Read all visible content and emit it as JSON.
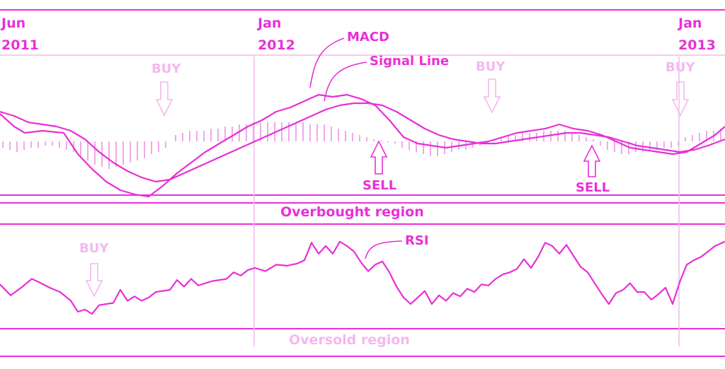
{
  "colors": {
    "primary": "#e830d8",
    "light": "#f4b8ee",
    "histogram": "#f0a8ea"
  },
  "dates": [
    {
      "month": "Jun",
      "year": "2011"
    },
    {
      "month": "Jan",
      "year": "2012"
    },
    {
      "month": "Jan",
      "year": "2013"
    }
  ],
  "annotations": {
    "macd": "MACD",
    "signal_line": "Signal Line",
    "rsi": "RSI",
    "overbought": "Overbought region",
    "oversold": "Oversold region"
  },
  "signals": {
    "macd_panel": [
      {
        "label": "BUY",
        "direction": "down",
        "emphasis": "faint"
      },
      {
        "label": "BUY",
        "direction": "down",
        "emphasis": "faint"
      },
      {
        "label": "BUY",
        "direction": "down",
        "emphasis": "faint"
      },
      {
        "label": "SELL",
        "direction": "up",
        "emphasis": "strong"
      },
      {
        "label": "SELL",
        "direction": "up",
        "emphasis": "strong"
      }
    ],
    "rsi_panel": [
      {
        "label": "BUY",
        "direction": "down",
        "emphasis": "faint"
      }
    ]
  },
  "chart_data": [
    {
      "type": "line",
      "panel": "MACD",
      "series": [
        {
          "name": "MACD",
          "role": "macd",
          "x": [
            0,
            20,
            35,
            60,
            90,
            110,
            130,
            150,
            170,
            190,
            210,
            230,
            250,
            270,
            290,
            310,
            330,
            350,
            370,
            390,
            410,
            430,
            450,
            470,
            490,
            510,
            530,
            550,
            570,
            590,
            610,
            630,
            650,
            670,
            690,
            710,
            730,
            750,
            770,
            790,
            810,
            830,
            850,
            870,
            890,
            910,
            930,
            950,
            970,
            990,
            1010,
            1024
          ],
          "y": [
            1.3,
            0.7,
            0.4,
            0.5,
            0.4,
            -0.6,
            -1.3,
            -1.9,
            -2.3,
            -2.5,
            -2.6,
            -2.1,
            -1.5,
            -1.0,
            -0.5,
            -0.1,
            0.3,
            0.7,
            1.0,
            1.4,
            1.6,
            1.9,
            2.2,
            2.1,
            2.2,
            2.0,
            1.7,
            1.0,
            0.2,
            -0.1,
            -0.2,
            -0.3,
            -0.2,
            -0.1,
            0.0,
            0.2,
            0.4,
            0.5,
            0.6,
            0.8,
            0.6,
            0.5,
            0.3,
            0.0,
            -0.3,
            -0.4,
            -0.5,
            -0.6,
            -0.5,
            -0.1,
            0.3,
            0.7
          ]
        },
        {
          "name": "Signal Line",
          "role": "signal",
          "x": [
            0,
            20,
            40,
            60,
            80,
            100,
            120,
            140,
            160,
            180,
            200,
            220,
            240,
            260,
            280,
            300,
            320,
            340,
            360,
            380,
            400,
            420,
            440,
            460,
            480,
            500,
            520,
            540,
            560,
            580,
            600,
            620,
            640,
            660,
            680,
            700,
            720,
            740,
            760,
            780,
            800,
            820,
            840,
            860,
            880,
            900,
            920,
            940,
            960,
            980,
            1000,
            1024
          ],
          "y": [
            1.4,
            1.2,
            0.9,
            0.8,
            0.7,
            0.5,
            0.1,
            -0.5,
            -1.0,
            -1.4,
            -1.7,
            -1.9,
            -1.8,
            -1.5,
            -1.2,
            -0.9,
            -0.6,
            -0.3,
            0.0,
            0.3,
            0.6,
            0.9,
            1.2,
            1.5,
            1.7,
            1.8,
            1.8,
            1.7,
            1.4,
            1.0,
            0.6,
            0.3,
            0.1,
            0.0,
            -0.1,
            -0.1,
            0.0,
            0.1,
            0.2,
            0.3,
            0.4,
            0.4,
            0.3,
            0.2,
            0.0,
            -0.2,
            -0.3,
            -0.4,
            -0.5,
            -0.4,
            -0.2,
            0.1
          ]
        },
        {
          "name": "Histogram",
          "role": "histogram",
          "x": [
            4,
            14,
            24,
            34,
            44,
            54,
            64,
            74,
            84,
            94,
            104,
            114,
            124,
            134,
            144,
            154,
            164,
            174,
            184,
            194,
            204,
            214,
            224,
            234,
            248,
            258,
            268,
            278,
            288,
            298,
            308,
            318,
            328,
            338,
            348,
            358,
            368,
            378,
            388,
            398,
            408,
            418,
            428,
            438,
            448,
            458,
            468,
            478,
            488,
            498,
            508,
            518,
            528,
            538,
            548,
            558,
            568,
            578,
            588,
            598,
            608,
            618,
            628,
            638,
            648,
            658,
            668,
            678,
            688,
            698,
            708,
            718,
            728,
            738,
            748,
            758,
            768,
            778,
            788,
            798,
            808,
            818,
            828,
            838,
            848,
            858,
            868,
            878,
            888,
            898,
            908,
            918,
            928,
            938,
            948,
            958,
            968,
            978,
            988,
            998,
            1008,
            1018
          ],
          "y": [
            -0.3,
            -0.4,
            -0.5,
            -0.4,
            -0.3,
            -0.3,
            -0.2,
            -0.2,
            -0.3,
            -0.4,
            -0.5,
            -0.7,
            -0.9,
            -1.1,
            -1.2,
            -1.3,
            -1.2,
            -1.1,
            -1.0,
            -0.9,
            -0.8,
            -0.6,
            -0.5,
            -0.3,
            0.3,
            0.4,
            0.5,
            0.5,
            0.5,
            0.6,
            0.6,
            0.7,
            0.7,
            0.8,
            0.8,
            0.9,
            0.9,
            0.9,
            0.9,
            0.9,
            0.9,
            0.9,
            0.9,
            0.8,
            0.8,
            0.8,
            0.7,
            0.6,
            0.5,
            0.4,
            0.3,
            0.2,
            0.1,
            0.05,
            -0.05,
            -0.1,
            -0.3,
            -0.4,
            -0.5,
            -0.6,
            -0.7,
            -0.7,
            -0.6,
            -0.5,
            -0.4,
            -0.4,
            -0.3,
            -0.2,
            -0.1,
            0.1,
            0.2,
            0.3,
            0.3,
            0.4,
            0.4,
            0.4,
            0.5,
            0.5,
            0.5,
            0.5,
            0.4,
            0.3,
            0.2,
            0.1,
            -0.2,
            -0.4,
            -0.5,
            -0.6,
            -0.6,
            -0.5,
            -0.5,
            -0.4,
            -0.4,
            -0.3,
            -0.3,
            -0.2,
            0.2,
            0.3,
            0.4,
            0.5,
            0.5,
            0.6
          ]
        }
      ]
    },
    {
      "type": "line",
      "panel": "RSI",
      "series": [
        {
          "name": "RSI",
          "role": "rsi",
          "x": [
            0,
            15,
            30,
            45,
            55,
            70,
            85,
            100,
            110,
            120,
            130,
            140,
            150,
            160,
            170,
            180,
            190,
            200,
            210,
            220,
            230,
            240,
            250,
            260,
            270,
            280,
            290,
            300,
            310,
            320,
            330,
            340,
            350,
            360,
            375,
            390,
            405,
            420,
            430,
            440,
            450,
            460,
            470,
            480,
            490,
            500,
            510,
            520,
            530,
            540,
            550,
            560,
            570,
            580,
            590,
            600,
            610,
            620,
            630,
            640,
            650,
            660,
            670,
            680,
            690,
            700,
            710,
            720,
            730,
            740,
            750,
            760,
            770,
            780,
            790,
            800,
            810,
            820,
            830,
            840,
            850,
            860,
            870,
            880,
            890,
            900,
            910,
            920,
            930,
            940,
            950,
            960,
            970,
            980,
            990,
            1000,
            1010,
            1024
          ],
          "y": [
            45,
            35,
            42,
            50,
            47,
            42,
            38,
            30,
            20,
            22,
            18,
            26,
            27,
            28,
            40,
            30,
            34,
            30,
            33,
            38,
            39,
            40,
            49,
            43,
            50,
            44,
            46,
            48,
            49,
            50,
            56,
            53,
            58,
            60,
            57,
            63,
            62,
            64,
            67,
            83,
            73,
            80,
            73,
            84,
            80,
            75,
            65,
            57,
            63,
            66,
            56,
            43,
            33,
            27,
            33,
            39,
            27,
            35,
            30,
            37,
            34,
            41,
            38,
            45,
            44,
            50,
            54,
            56,
            59,
            68,
            60,
            70,
            83,
            80,
            73,
            81,
            71,
            61,
            56,
            46,
            36,
            27,
            37,
            40,
            46,
            38,
            38,
            31,
            36,
            42,
            27,
            47,
            63,
            67,
            70,
            75,
            80,
            84
          ]
        }
      ]
    }
  ]
}
